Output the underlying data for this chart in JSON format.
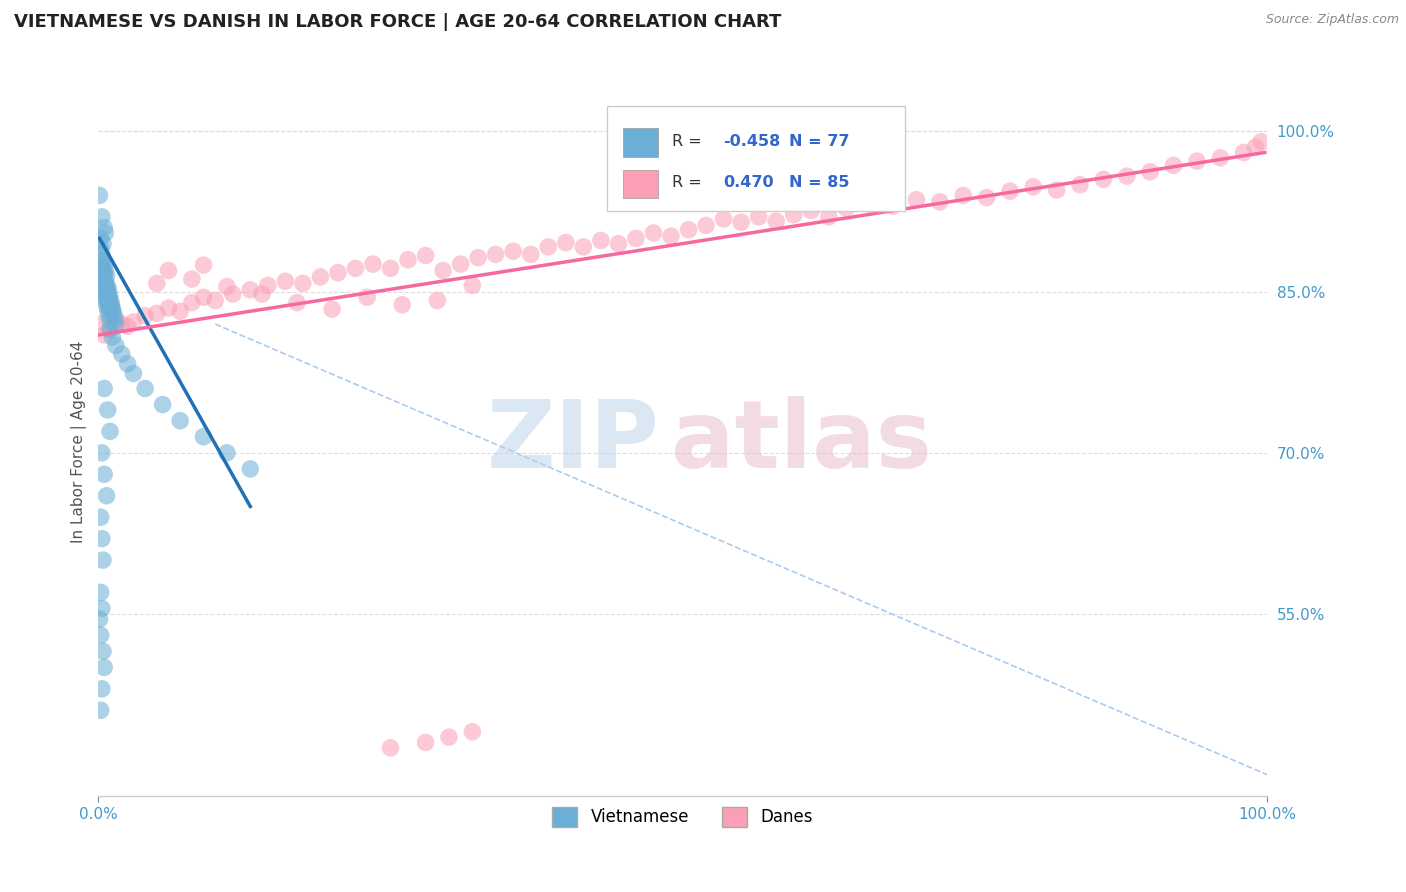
{
  "title": "VIETNAMESE VS DANISH IN LABOR FORCE | AGE 20-64 CORRELATION CHART",
  "source": "Source: ZipAtlas.com",
  "ylabel": "In Labor Force | Age 20-64",
  "xlim": [
    0.0,
    1.0
  ],
  "ylim": [
    0.38,
    1.04
  ],
  "yticks_right": [
    0.55,
    0.7,
    0.85,
    1.0
  ],
  "ytick_right_labels": [
    "55.0%",
    "70.0%",
    "85.0%",
    "100.0%"
  ],
  "legend_r_vietnamese": "-0.458",
  "legend_n_vietnamese": "77",
  "legend_r_danish": "0.470",
  "legend_n_danish": "85",
  "legend_label_vietnamese": "Vietnamese",
  "legend_label_danish": "Danes",
  "vietnamese_color": "#6baed6",
  "danish_color": "#fa9fb5",
  "vietnamese_trend_color": "#2171b5",
  "danish_trend_color": "#f768a1",
  "ref_line_color": "#aaccee",
  "watermark_color_zip": "#b8d0e8",
  "watermark_color_atlas": "#e8b8c8",
  "background_color": "#ffffff",
  "title_color": "#222222",
  "title_fontsize": 13,
  "axis_label_color": "#555555",
  "tick_label_color": "#4499cc",
  "vietnamese_data": [
    [
      0.001,
      0.94
    ],
    [
      0.003,
      0.92
    ],
    [
      0.005,
      0.91
    ],
    [
      0.002,
      0.9
    ],
    [
      0.004,
      0.895
    ],
    [
      0.006,
      0.905
    ],
    [
      0.002,
      0.89
    ],
    [
      0.003,
      0.885
    ],
    [
      0.004,
      0.88
    ],
    [
      0.005,
      0.875
    ],
    [
      0.006,
      0.87
    ],
    [
      0.007,
      0.865
    ],
    [
      0.003,
      0.878
    ],
    [
      0.004,
      0.872
    ],
    [
      0.005,
      0.866
    ],
    [
      0.006,
      0.86
    ],
    [
      0.007,
      0.855
    ],
    [
      0.008,
      0.85
    ],
    [
      0.004,
      0.862
    ],
    [
      0.005,
      0.856
    ],
    [
      0.006,
      0.85
    ],
    [
      0.007,
      0.845
    ],
    [
      0.008,
      0.84
    ],
    [
      0.009,
      0.835
    ],
    [
      0.005,
      0.848
    ],
    [
      0.006,
      0.843
    ],
    [
      0.007,
      0.838
    ],
    [
      0.008,
      0.833
    ],
    [
      0.009,
      0.828
    ],
    [
      0.01,
      0.823
    ],
    [
      0.003,
      0.87
    ],
    [
      0.004,
      0.865
    ],
    [
      0.005,
      0.86
    ],
    [
      0.006,
      0.856
    ],
    [
      0.007,
      0.852
    ],
    [
      0.008,
      0.848
    ],
    [
      0.009,
      0.844
    ],
    [
      0.01,
      0.84
    ],
    [
      0.011,
      0.836
    ],
    [
      0.012,
      0.832
    ],
    [
      0.008,
      0.855
    ],
    [
      0.009,
      0.85
    ],
    [
      0.01,
      0.845
    ],
    [
      0.011,
      0.84
    ],
    [
      0.012,
      0.835
    ],
    [
      0.013,
      0.83
    ],
    [
      0.014,
      0.825
    ],
    [
      0.015,
      0.82
    ],
    [
      0.01,
      0.815
    ],
    [
      0.012,
      0.808
    ],
    [
      0.015,
      0.8
    ],
    [
      0.02,
      0.792
    ],
    [
      0.025,
      0.783
    ],
    [
      0.03,
      0.774
    ],
    [
      0.04,
      0.76
    ],
    [
      0.055,
      0.745
    ],
    [
      0.07,
      0.73
    ],
    [
      0.09,
      0.715
    ],
    [
      0.11,
      0.7
    ],
    [
      0.13,
      0.685
    ],
    [
      0.005,
      0.76
    ],
    [
      0.008,
      0.74
    ],
    [
      0.01,
      0.72
    ],
    [
      0.003,
      0.7
    ],
    [
      0.005,
      0.68
    ],
    [
      0.007,
      0.66
    ],
    [
      0.002,
      0.64
    ],
    [
      0.003,
      0.62
    ],
    [
      0.004,
      0.6
    ],
    [
      0.002,
      0.57
    ],
    [
      0.003,
      0.555
    ],
    [
      0.001,
      0.545
    ],
    [
      0.002,
      0.53
    ],
    [
      0.004,
      0.515
    ],
    [
      0.005,
      0.5
    ],
    [
      0.003,
      0.48
    ],
    [
      0.002,
      0.46
    ]
  ],
  "danish_data": [
    [
      0.001,
      0.82
    ],
    [
      0.005,
      0.81
    ],
    [
      0.01,
      0.815
    ],
    [
      0.015,
      0.825
    ],
    [
      0.02,
      0.82
    ],
    [
      0.025,
      0.818
    ],
    [
      0.03,
      0.822
    ],
    [
      0.04,
      0.828
    ],
    [
      0.05,
      0.83
    ],
    [
      0.06,
      0.835
    ],
    [
      0.07,
      0.832
    ],
    [
      0.08,
      0.84
    ],
    [
      0.09,
      0.845
    ],
    [
      0.1,
      0.842
    ],
    [
      0.115,
      0.848
    ],
    [
      0.13,
      0.852
    ],
    [
      0.145,
      0.856
    ],
    [
      0.16,
      0.86
    ],
    [
      0.175,
      0.858
    ],
    [
      0.19,
      0.864
    ],
    [
      0.205,
      0.868
    ],
    [
      0.22,
      0.872
    ],
    [
      0.235,
      0.876
    ],
    [
      0.25,
      0.872
    ],
    [
      0.265,
      0.88
    ],
    [
      0.28,
      0.884
    ],
    [
      0.295,
      0.87
    ],
    [
      0.31,
      0.876
    ],
    [
      0.325,
      0.882
    ],
    [
      0.34,
      0.885
    ],
    [
      0.355,
      0.888
    ],
    [
      0.37,
      0.885
    ],
    [
      0.385,
      0.892
    ],
    [
      0.4,
      0.896
    ],
    [
      0.415,
      0.892
    ],
    [
      0.43,
      0.898
    ],
    [
      0.445,
      0.895
    ],
    [
      0.46,
      0.9
    ],
    [
      0.475,
      0.905
    ],
    [
      0.49,
      0.902
    ],
    [
      0.505,
      0.908
    ],
    [
      0.52,
      0.912
    ],
    [
      0.535,
      0.918
    ],
    [
      0.55,
      0.915
    ],
    [
      0.565,
      0.92
    ],
    [
      0.58,
      0.916
    ],
    [
      0.595,
      0.922
    ],
    [
      0.61,
      0.926
    ],
    [
      0.625,
      0.92
    ],
    [
      0.64,
      0.928
    ],
    [
      0.66,
      0.932
    ],
    [
      0.68,
      0.93
    ],
    [
      0.7,
      0.936
    ],
    [
      0.72,
      0.934
    ],
    [
      0.74,
      0.94
    ],
    [
      0.76,
      0.938
    ],
    [
      0.78,
      0.944
    ],
    [
      0.8,
      0.948
    ],
    [
      0.82,
      0.945
    ],
    [
      0.84,
      0.95
    ],
    [
      0.86,
      0.955
    ],
    [
      0.88,
      0.958
    ],
    [
      0.9,
      0.962
    ],
    [
      0.92,
      0.968
    ],
    [
      0.94,
      0.972
    ],
    [
      0.96,
      0.975
    ],
    [
      0.98,
      0.98
    ],
    [
      0.99,
      0.985
    ],
    [
      0.995,
      0.99
    ],
    [
      0.05,
      0.858
    ],
    [
      0.08,
      0.862
    ],
    [
      0.11,
      0.855
    ],
    [
      0.14,
      0.848
    ],
    [
      0.17,
      0.84
    ],
    [
      0.2,
      0.834
    ],
    [
      0.23,
      0.845
    ],
    [
      0.26,
      0.838
    ],
    [
      0.29,
      0.842
    ],
    [
      0.32,
      0.856
    ],
    [
      0.06,
      0.87
    ],
    [
      0.09,
      0.875
    ],
    [
      0.28,
      0.43
    ],
    [
      0.3,
      0.435
    ],
    [
      0.32,
      0.44
    ],
    [
      0.25,
      0.425
    ]
  ],
  "viet_trend_x": [
    0.001,
    0.13
  ],
  "viet_trend_y": [
    0.9,
    0.65
  ],
  "dan_trend_x": [
    0.001,
    0.998
  ],
  "dan_trend_y": [
    0.81,
    0.98
  ],
  "ref_line_x": [
    0.1,
    1.0
  ],
  "ref_line_y": [
    0.82,
    0.4
  ]
}
